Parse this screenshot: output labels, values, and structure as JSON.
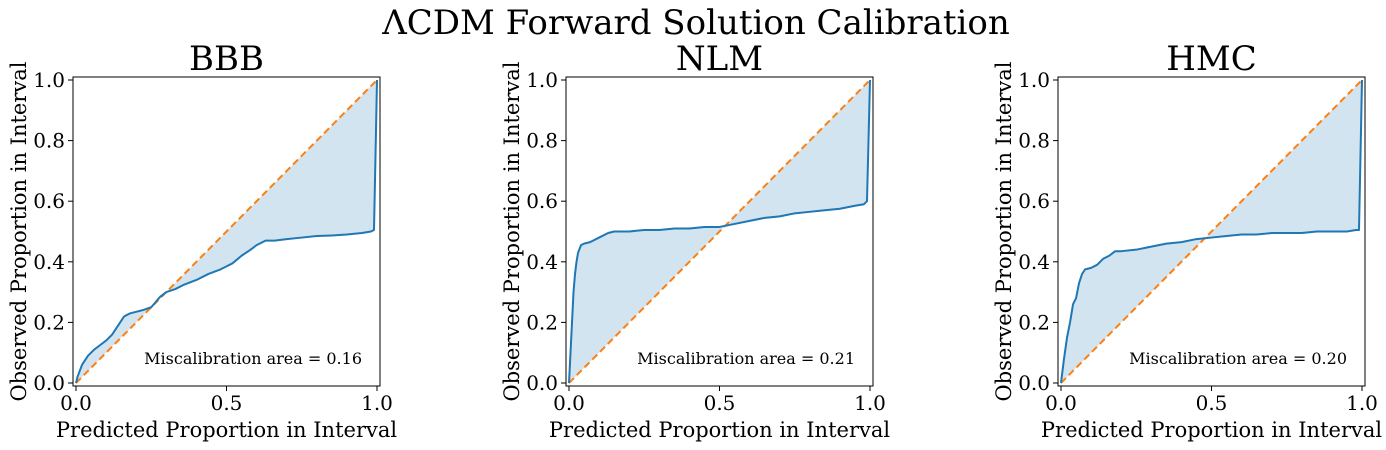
{
  "figure": {
    "suptitle": "ΛCDM Forward Solution Calibration"
  },
  "chart_data": [
    {
      "type": "line",
      "title": "BBB",
      "xlabel": "Predicted Proportion in Interval",
      "ylabel": "Observed Proportion in Interval",
      "xlim": [
        0,
        1
      ],
      "ylim": [
        0,
        1
      ],
      "xticks": [
        0.0,
        0.5,
        1.0
      ],
      "xtick_labels": [
        "0.0",
        "0.5",
        "1.0"
      ],
      "yticks": [
        0.0,
        0.2,
        0.4,
        0.6,
        0.8,
        1.0
      ],
      "ytick_labels": [
        "0.0",
        "0.2",
        "0.4",
        "0.6",
        "0.8",
        "1.0"
      ],
      "annotation": "Miscalibration area = 0.16",
      "series": [
        {
          "name": "calibration curve",
          "color": "#1f77b4",
          "x": [
            0,
            0.005,
            0.02,
            0.04,
            0.06,
            0.08,
            0.1,
            0.12,
            0.14,
            0.16,
            0.18,
            0.2,
            0.22,
            0.25,
            0.28,
            0.3,
            0.33,
            0.36,
            0.4,
            0.44,
            0.48,
            0.5,
            0.52,
            0.55,
            0.58,
            0.6,
            0.63,
            0.66,
            0.7,
            0.75,
            0.8,
            0.85,
            0.9,
            0.95,
            0.98,
            0.99,
            0.995,
            1.0
          ],
          "y": [
            0,
            0.02,
            0.06,
            0.09,
            0.11,
            0.125,
            0.14,
            0.16,
            0.19,
            0.22,
            0.23,
            0.235,
            0.24,
            0.25,
            0.285,
            0.3,
            0.31,
            0.325,
            0.34,
            0.36,
            0.375,
            0.385,
            0.395,
            0.42,
            0.44,
            0.455,
            0.47,
            0.47,
            0.475,
            0.48,
            0.485,
            0.487,
            0.49,
            0.495,
            0.5,
            0.505,
            0.75,
            1.0
          ]
        },
        {
          "name": "ideal",
          "color": "#ff7f0e",
          "style": "dashed",
          "x": [
            0,
            1
          ],
          "y": [
            0,
            1
          ]
        }
      ],
      "fill_color": "#1f77b4"
    },
    {
      "type": "line",
      "title": "NLM",
      "xlabel": "Predicted Proportion in Interval",
      "ylabel": "Observed Proportion in Interval",
      "xlim": [
        0,
        1
      ],
      "ylim": [
        0,
        1
      ],
      "xticks": [
        0.0,
        0.5,
        1.0
      ],
      "xtick_labels": [
        "0.0",
        "0.5",
        "1.0"
      ],
      "yticks": [
        0.0,
        0.2,
        0.4,
        0.6,
        0.8,
        1.0
      ],
      "ytick_labels": [
        "0.0",
        "0.2",
        "0.4",
        "0.6",
        "0.8",
        "1.0"
      ],
      "annotation": "Miscalibration area = 0.21",
      "series": [
        {
          "name": "calibration curve",
          "color": "#1f77b4",
          "x": [
            0,
            0.005,
            0.01,
            0.015,
            0.02,
            0.025,
            0.03,
            0.04,
            0.05,
            0.07,
            0.1,
            0.13,
            0.15,
            0.2,
            0.25,
            0.3,
            0.35,
            0.4,
            0.45,
            0.5,
            0.55,
            0.6,
            0.65,
            0.7,
            0.75,
            0.8,
            0.85,
            0.9,
            0.95,
            0.98,
            0.99,
            0.995,
            1.0
          ],
          "y": [
            0,
            0.1,
            0.2,
            0.3,
            0.36,
            0.4,
            0.43,
            0.455,
            0.46,
            0.465,
            0.48,
            0.495,
            0.5,
            0.5,
            0.505,
            0.505,
            0.51,
            0.51,
            0.515,
            0.515,
            0.525,
            0.535,
            0.545,
            0.55,
            0.56,
            0.565,
            0.57,
            0.575,
            0.585,
            0.59,
            0.6,
            0.8,
            1.0
          ]
        },
        {
          "name": "ideal",
          "color": "#ff7f0e",
          "style": "dashed",
          "x": [
            0,
            1
          ],
          "y": [
            0,
            1
          ]
        }
      ],
      "fill_color": "#1f77b4"
    },
    {
      "type": "line",
      "title": "HMC",
      "xlabel": "Predicted Proportion in Interval",
      "ylabel": "Observed Proportion in Interval",
      "xlim": [
        0,
        1
      ],
      "ylim": [
        0,
        1
      ],
      "xticks": [
        0.0,
        0.5,
        1.0
      ],
      "xtick_labels": [
        "0.0",
        "0.5",
        "1.0"
      ],
      "yticks": [
        0.0,
        0.2,
        0.4,
        0.6,
        0.8,
        1.0
      ],
      "ytick_labels": [
        "0.0",
        "0.2",
        "0.4",
        "0.6",
        "0.8",
        "1.0"
      ],
      "annotation": "Miscalibration area = 0.20",
      "series": [
        {
          "name": "calibration curve",
          "color": "#1f77b4",
          "x": [
            0,
            0.01,
            0.02,
            0.03,
            0.04,
            0.05,
            0.06,
            0.07,
            0.08,
            0.1,
            0.12,
            0.14,
            0.16,
            0.18,
            0.2,
            0.25,
            0.3,
            0.35,
            0.4,
            0.45,
            0.5,
            0.55,
            0.6,
            0.65,
            0.7,
            0.75,
            0.8,
            0.85,
            0.9,
            0.95,
            0.98,
            0.99,
            0.995,
            1.0
          ],
          "y": [
            0,
            0.08,
            0.15,
            0.2,
            0.26,
            0.28,
            0.33,
            0.36,
            0.375,
            0.38,
            0.39,
            0.41,
            0.42,
            0.435,
            0.435,
            0.44,
            0.45,
            0.46,
            0.465,
            0.475,
            0.48,
            0.485,
            0.49,
            0.49,
            0.495,
            0.495,
            0.495,
            0.5,
            0.5,
            0.5,
            0.505,
            0.505,
            0.75,
            1.0
          ]
        },
        {
          "name": "ideal",
          "color": "#ff7f0e",
          "style": "dashed",
          "x": [
            0,
            1
          ],
          "y": [
            0,
            1
          ]
        }
      ],
      "fill_color": "#1f77b4"
    }
  ]
}
